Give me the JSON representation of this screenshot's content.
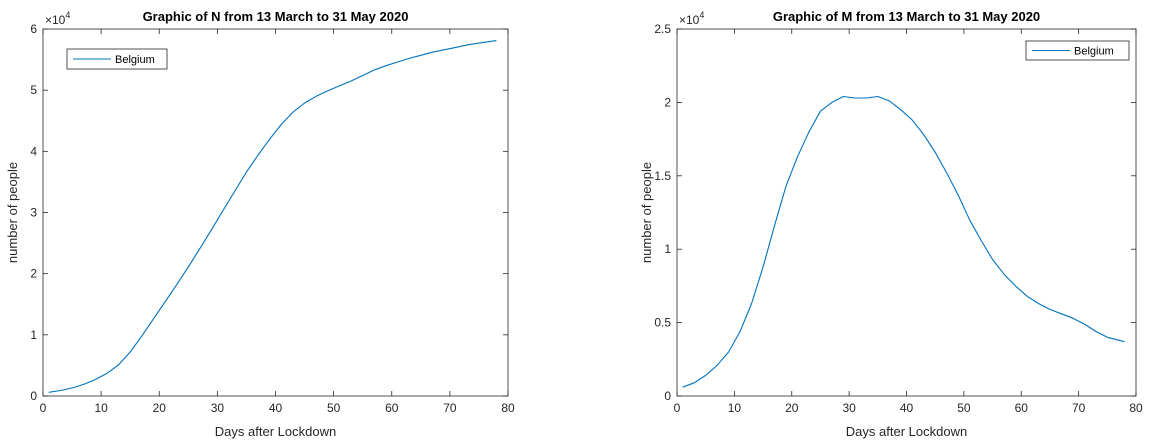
{
  "colors": {
    "line": "#0072BD",
    "axes": "#262626",
    "background": "#ffffff"
  },
  "chart_data": [
    {
      "type": "line",
      "title": "Graphic of N from 13 March to 31 May 2020",
      "xlabel": "Days after Lockdown",
      "ylabel": "number of people",
      "xlim": [
        0,
        80
      ],
      "ylim": [
        0,
        60000
      ],
      "xticks": [
        0,
        10,
        20,
        30,
        40,
        50,
        60,
        70,
        80
      ],
      "yticks": [
        0,
        10000,
        20000,
        30000,
        40000,
        50000,
        60000
      ],
      "ytick_labels": [
        "0",
        "1",
        "2",
        "3",
        "4",
        "5",
        "6"
      ],
      "y_exponent": {
        "base": "×10",
        "power": "4"
      },
      "legend_position": "top-left",
      "grid": false,
      "series": [
        {
          "name": "Belgium",
          "x": [
            1,
            3,
            5,
            7,
            9,
            11,
            13,
            15,
            17,
            19,
            21,
            23,
            25,
            27,
            29,
            31,
            33,
            35,
            37,
            39,
            41,
            43,
            45,
            47,
            49,
            51,
            53,
            55,
            57,
            59,
            61,
            63,
            65,
            67,
            69,
            71,
            73,
            75,
            78
          ],
          "y": [
            600,
            900,
            1300,
            1900,
            2700,
            3700,
            5100,
            7200,
            9800,
            12600,
            15400,
            18200,
            21100,
            24100,
            27200,
            30400,
            33500,
            36600,
            39400,
            42000,
            44400,
            46400,
            47900,
            49000,
            49900,
            50700,
            51500,
            52400,
            53300,
            54000,
            54600,
            55200,
            55700,
            56200,
            56600,
            57000,
            57400,
            57700,
            58100
          ]
        }
      ]
    },
    {
      "type": "line",
      "title": "Graphic of M from 13 March to 31 May 2020",
      "xlabel": "Days after Lockdown",
      "ylabel": "number of people",
      "xlim": [
        0,
        80
      ],
      "ylim": [
        0,
        25000
      ],
      "xticks": [
        0,
        10,
        20,
        30,
        40,
        50,
        60,
        70,
        80
      ],
      "yticks": [
        0,
        5000,
        10000,
        15000,
        20000,
        25000
      ],
      "ytick_labels": [
        "0",
        "0.5",
        "1",
        "1.5",
        "2",
        "2.5"
      ],
      "y_exponent": {
        "base": "×10",
        "power": "4"
      },
      "legend_position": "top-right",
      "grid": false,
      "series": [
        {
          "name": "Belgium",
          "x": [
            1,
            3,
            5,
            7,
            9,
            11,
            13,
            15,
            17,
            19,
            21,
            23,
            25,
            27,
            29,
            31,
            33,
            35,
            37,
            39,
            41,
            43,
            45,
            47,
            49,
            51,
            53,
            55,
            57,
            59,
            61,
            63,
            65,
            67,
            69,
            71,
            73,
            75,
            78
          ],
          "y": [
            600,
            900,
            1400,
            2100,
            3000,
            4400,
            6300,
            8800,
            11600,
            14300,
            16300,
            18000,
            19400,
            20000,
            20400,
            20300,
            20300,
            20400,
            20100,
            19500,
            18800,
            17800,
            16600,
            15200,
            13700,
            12000,
            10600,
            9300,
            8300,
            7500,
            6800,
            6300,
            5900,
            5600,
            5300,
            4900,
            4400,
            4000,
            3700
          ]
        }
      ]
    }
  ]
}
